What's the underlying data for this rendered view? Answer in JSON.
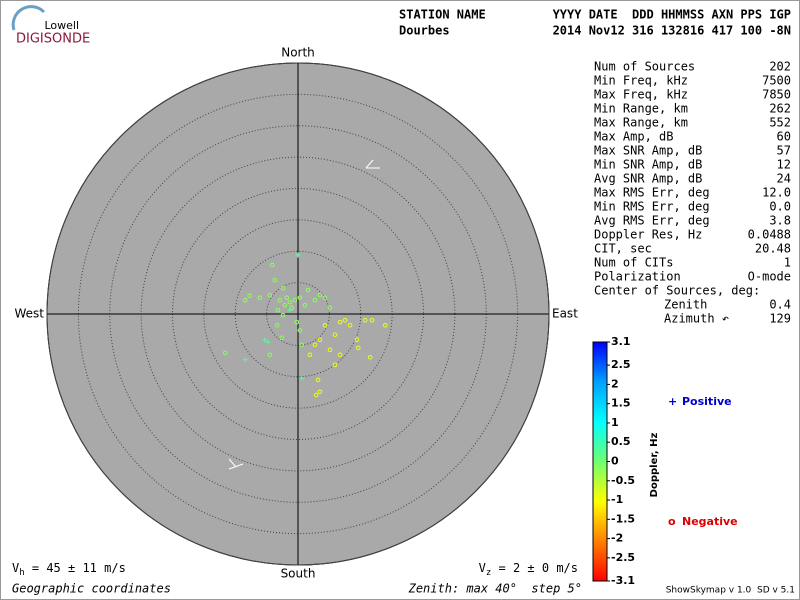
{
  "logo": {
    "top": "Lowell",
    "bottom": "DIGISONDE"
  },
  "header": {
    "row1": [
      "STATION NAME",
      "YYYY DATE  DDD HHMMSS AXN PPS IGP"
    ],
    "row2": [
      "Dourbes",
      "2014 Nov12 316 132816 417 100 -8N"
    ]
  },
  "stats": {
    "rows": [
      [
        "Num of Sources",
        "202"
      ],
      [
        "Min Freq, kHz",
        "7500"
      ],
      [
        "Max Freq, kHz",
        "7850"
      ],
      [
        "Min Range, km",
        "262"
      ],
      [
        "Max Range, km",
        "552"
      ],
      [
        "Max Amp, dB",
        "60"
      ],
      [
        "Max SNR Amp, dB",
        "57"
      ],
      [
        "Min SNR Amp, dB",
        "12"
      ],
      [
        "Avg SNR Amp, dB",
        "24"
      ],
      [
        "Max RMS Err, deg",
        "12.0"
      ],
      [
        "Min RMS Err, deg",
        "0.0"
      ],
      [
        "Avg RMS Err, deg",
        "3.8"
      ],
      [
        "Doppler Res, Hz",
        "0.0488"
      ],
      [
        "CIT, sec",
        "20.48"
      ],
      [
        "Num of CITs",
        "1"
      ],
      [
        "Polarization",
        "O-mode"
      ]
    ],
    "center": {
      "title": "Center of Sources, deg:",
      "rows": [
        [
          "Zenith",
          "0.4"
        ],
        [
          "Azimuth ↶",
          "129"
        ]
      ]
    }
  },
  "footer": {
    "vh": {
      "sym": "V",
      "sub": "h",
      "text": " = 45 ± 11 m/s"
    },
    "vz": {
      "sym": "V",
      "sub": "z",
      "text": " = 2 ± 0 m/s"
    },
    "coords": "Geographic coordinates",
    "zenith": "Zenith: max 40°  step 5°",
    "version": "ShowSkymap v 1.0  SD v 5.1"
  },
  "chart_data": {
    "type": "skymap",
    "directions": {
      "north": "North",
      "east": "East",
      "south": "South",
      "west": "West"
    },
    "rlim": [
      0,
      40
    ],
    "rticks": [
      5,
      10,
      15,
      20,
      25,
      30,
      35,
      40
    ],
    "colorbar": {
      "label": "Doppler, Hz",
      "lim": [
        -3.1,
        3.1
      ],
      "ticks": [
        3.1,
        2.5,
        2,
        1.5,
        1,
        0.5,
        0,
        -0.5,
        -1.0,
        -1.5,
        -2.0,
        -2.5,
        -3.1
      ],
      "colors": [
        "#ff0000",
        "#ff8000",
        "#ffff00",
        "#70ff70",
        "#00ffff",
        "#00a0ff",
        "#0000ff"
      ]
    },
    "series": [
      {
        "name": "Positive",
        "marker": "+",
        "color": "#0000cc",
        "x": [
          0,
          -8.4,
          -4.8,
          0.6,
          -1.3,
          -5.3
        ],
        "y": [
          9.4,
          -7.3,
          -4.5,
          -10.2,
          0.6,
          -4.1
        ],
        "doppler": [
          0.3,
          0.3,
          0.3,
          0.3,
          0.3,
          0.3
        ]
      },
      {
        "name": "Negative",
        "marker": "o",
        "color": "#dd0000",
        "x": [
          -2.9,
          -2.1,
          -1.3,
          -3.2,
          -1.0,
          -1.8,
          -0.5,
          -2.4,
          -4.5,
          -6.1,
          -7.7,
          -8.4,
          0.3,
          1.1,
          1.6,
          -3.7,
          -4.1,
          -2.4,
          -0.2,
          0.3,
          -3.3,
          -2.6,
          2.7,
          3.5,
          4.3,
          5.1,
          -11.6,
          -4.5,
          0.6,
          6.7,
          5.9,
          4.3,
          3.5,
          5.1,
          2.7,
          1.9,
          6.7,
          7.5,
          9.4,
          9.6,
          11.5,
          11.8,
          13.9,
          10.7,
          3.2,
          3.5,
          2.9,
          5.9,
          8.3
        ],
        "y": [
          2.2,
          1.4,
          1.9,
          0.6,
          1.0,
          2.6,
          2.2,
          -0.2,
          3.0,
          2.6,
          2.9,
          2.2,
          2.6,
          1.4,
          3.8,
          5.4,
          7.8,
          4.1,
          -1.3,
          -2.6,
          -1.8,
          -3.8,
          2.2,
          3.0,
          2.6,
          1.0,
          -6.2,
          -6.5,
          -4.9,
          -1.3,
          -3.3,
          -1.8,
          -4.1,
          -5.7,
          -4.9,
          -6.5,
          -6.5,
          -1.0,
          -4.1,
          -5.4,
          -6.9,
          -1.0,
          -1.8,
          -1.0,
          -10.5,
          -12.4,
          -12.9,
          -8.1,
          -1.8
        ],
        "doppler": [
          -0.2,
          -0.2,
          -0.2,
          -0.2,
          -0.2,
          -0.2,
          -0.2,
          -0.2,
          -0.2,
          -0.2,
          -0.2,
          -0.2,
          -0.2,
          -0.2,
          -0.2,
          -0.2,
          -0.2,
          -0.2,
          -0.2,
          -0.2,
          -0.2,
          -0.2,
          -0.2,
          -0.2,
          -0.2,
          -0.2,
          -0.2,
          -0.2,
          -0.2,
          -0.9,
          -0.9,
          -0.9,
          -0.9,
          -0.9,
          -0.9,
          -0.9,
          -0.9,
          -0.9,
          -0.9,
          -0.9,
          -0.9,
          -0.9,
          -0.9,
          -0.9,
          -0.9,
          -0.9,
          -0.9,
          -0.9,
          -0.9
        ]
      }
    ]
  }
}
